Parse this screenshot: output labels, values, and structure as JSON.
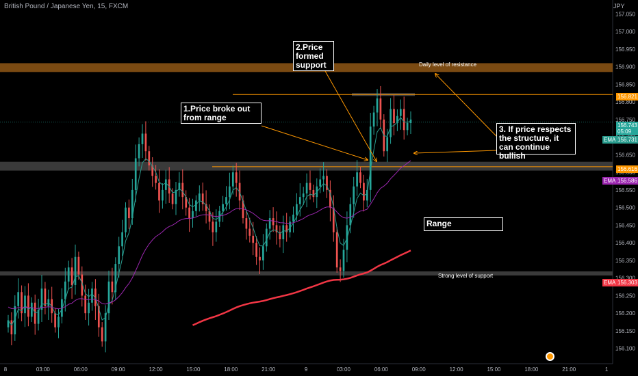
{
  "header": {
    "title": "British Pound / Japanese Yen, 15, FXCM",
    "currency": "JPY"
  },
  "annotations": {
    "a1": "1.Price broke out from range",
    "a2": "2.Price formed support",
    "a3": "3. If price respects the structure, it can continue bullish",
    "range": "Range",
    "resistance": "Daily level of resistance",
    "support": "Strong level of support"
  },
  "price_labels": {
    "level_high": "156.821",
    "last": "156.743",
    "countdown": "05:09",
    "level_low": "156.616"
  },
  "ema": [
    {
      "label": "EMA",
      "value": "156.731",
      "color": "#2a9d8f"
    },
    {
      "label": "EMA",
      "value": "156.586",
      "color": "#9c27b0"
    },
    {
      "label": "EMA",
      "value": "156.303",
      "color": "#f23645"
    }
  ],
  "colors": {
    "up": "#26a69a",
    "down": "#ef5350",
    "resistance_zone": "#7a4a12",
    "support_zone": "#3a3a3a",
    "level_line": "#ff9800"
  },
  "chart_data": {
    "type": "candlestick",
    "instrument": "British Pound / Japanese Yen, 15, FXCM",
    "y_ticks": [
      "157.050",
      "157.000",
      "156.950",
      "156.900",
      "156.850",
      "156.800",
      "156.750",
      "156.700",
      "156.650",
      "156.600",
      "156.550",
      "156.500",
      "156.450",
      "156.400",
      "156.350",
      "156.300",
      "156.250",
      "156.200",
      "156.150",
      "156.100"
    ],
    "x_ticks": [
      "8",
      "03:00",
      "06:00",
      "09:00",
      "12:00",
      "15:00",
      "18:00",
      "21:00",
      "9",
      "03:00",
      "06:00",
      "09:00",
      "12:00",
      "15:00",
      "18:00",
      "21:00",
      "1"
    ],
    "ylim": [
      156.08,
      157.07
    ],
    "resistance_zone": [
      156.885,
      156.91
    ],
    "support_zone": [
      156.605,
      156.63
    ],
    "strong_support_line": 156.313,
    "level_line_high": 156.821,
    "level_line_low": 156.616,
    "closes": [
      156.18,
      156.14,
      156.22,
      156.26,
      156.2,
      156.25,
      156.19,
      156.23,
      156.17,
      156.21,
      156.27,
      156.22,
      156.24,
      156.2,
      156.16,
      156.19,
      156.24,
      156.29,
      156.33,
      156.28,
      156.36,
      156.31,
      156.25,
      156.2,
      156.23,
      156.27,
      156.22,
      156.16,
      156.12,
      156.2,
      156.29,
      156.26,
      156.34,
      156.39,
      156.43,
      156.5,
      156.47,
      156.55,
      156.64,
      156.68,
      156.71,
      156.66,
      156.62,
      156.59,
      156.57,
      156.52,
      156.55,
      156.58,
      156.54,
      156.51,
      156.55,
      156.57,
      156.53,
      156.5,
      156.47,
      156.49,
      156.52,
      156.54,
      156.51,
      156.49,
      156.46,
      156.43,
      156.46,
      156.49,
      156.51,
      156.53,
      156.56,
      156.6,
      156.57,
      156.52,
      156.47,
      156.44,
      156.42,
      156.4,
      156.36,
      156.35,
      156.39,
      156.44,
      156.47,
      156.45,
      156.43,
      156.41,
      156.45,
      156.43,
      156.46,
      156.48,
      156.51,
      156.53,
      156.54,
      156.57,
      156.55,
      156.53,
      156.56,
      156.58,
      156.59,
      156.55,
      156.5,
      156.43,
      156.33,
      156.32,
      156.38,
      156.45,
      156.51,
      156.56,
      156.6,
      156.57,
      156.52,
      156.55,
      156.73,
      156.77,
      156.81,
      156.75,
      156.66,
      156.7,
      156.78,
      156.74,
      156.76,
      156.78,
      156.72,
      156.74,
      156.75
    ],
    "ema_fast_color": "#2a9d8f",
    "ema_mid_color": "#9c27b0",
    "ema_slow_color": "#f23645"
  }
}
